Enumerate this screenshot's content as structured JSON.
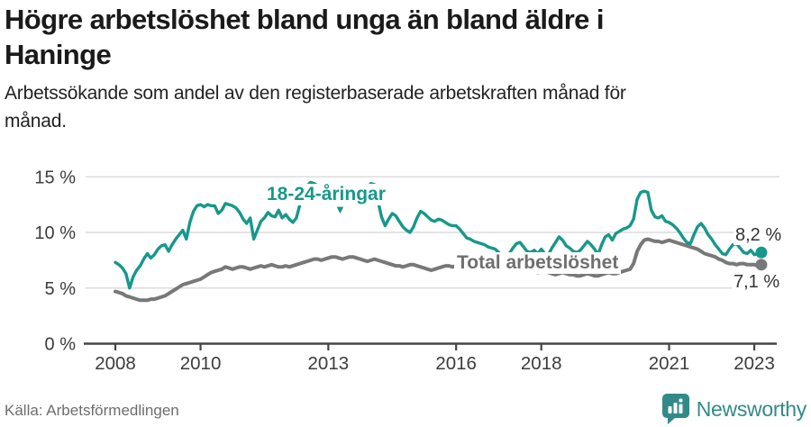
{
  "header": {
    "title_line1": "Högre arbetslöshet bland unga än bland äldre i",
    "title_line2": "Haninge",
    "subtitle_line1": "Arbetssökande som andel av den registerbaserade arbetskraften månad för",
    "subtitle_line2": "månad."
  },
  "colors": {
    "accent": "#17988b",
    "total_line": "#787878",
    "grid": "#dcdcdc",
    "axis": "#454545",
    "tick_text": "#3c3c3c",
    "muted_text": "#6d6d6d",
    "brand": "#328a88"
  },
  "chart_data": {
    "type": "line",
    "title": "Högre arbetslöshet bland unga än bland äldre i Haninge",
    "subtitle": "Arbetssökande som andel av den registerbaserade arbetskraften månad för månad.",
    "xlabel": "",
    "ylabel": "",
    "x_unit": "monthly",
    "x_start_year": 2008,
    "x_tick_years": [
      2008,
      2010,
      2013,
      2016,
      2018,
      2021,
      2023
    ],
    "y_ticks": [
      0,
      5,
      10,
      15
    ],
    "y_tick_suffix": " %",
    "ylim": [
      0,
      15
    ],
    "grid": true,
    "legend_position": "inline-annotations",
    "series": [
      {
        "name": "18-24-åringar",
        "color": "#17988b",
        "end_label": "8,2 %",
        "end_value": 8.2,
        "values": [
          7.3,
          7.1,
          6.8,
          6.3,
          5.0,
          6.0,
          6.6,
          7.0,
          7.6,
          8.1,
          7.7,
          8.0,
          8.5,
          8.8,
          8.9,
          8.3,
          8.9,
          9.4,
          9.8,
          10.2,
          9.4,
          10.9,
          11.9,
          12.4,
          12.5,
          12.3,
          12.5,
          12.4,
          12.4,
          11.7,
          12.0,
          12.6,
          12.5,
          12.4,
          12.2,
          11.8,
          11.2,
          10.8,
          11.3,
          9.4,
          10.2,
          11.0,
          11.3,
          11.8,
          11.5,
          11.4,
          12.0,
          11.3,
          11.6,
          11.2,
          10.9,
          11.3,
          12.5,
          13.6,
          14.2,
          14.5,
          14.4,
          14.2,
          13.9,
          14.0,
          14.2,
          14.0,
          13.8,
          13.6,
          13.5,
          13.4,
          13.3,
          13.4,
          13.5,
          13.6,
          13.8,
          14.0,
          14.4,
          14.3,
          12.8,
          11.4,
          10.6,
          11.2,
          11.7,
          11.5,
          11.0,
          10.5,
          10.2,
          10.0,
          10.5,
          11.3,
          11.9,
          11.7,
          11.4,
          11.1,
          11.0,
          11.2,
          11.1,
          10.9,
          10.7,
          10.6,
          10.6,
          10.3,
          9.9,
          9.5,
          9.4,
          9.2,
          9.1,
          9.0,
          8.9,
          8.7,
          8.6,
          8.5,
          8.2,
          7.9,
          7.7,
          8.1,
          8.6,
          9.0,
          9.1,
          8.7,
          8.3,
          8.2,
          8.4,
          8.1,
          8.5,
          8.1,
          8.0,
          8.6,
          9.1,
          9.6,
          9.3,
          8.8,
          8.6,
          8.3,
          8.2,
          8.4,
          8.8,
          9.2,
          8.9,
          8.5,
          8.0,
          8.9,
          9.6,
          9.8,
          9.3,
          9.9,
          10.1,
          10.3,
          10.4,
          10.6,
          11.2,
          13.0,
          13.6,
          13.7,
          13.6,
          12.0,
          11.4,
          11.3,
          11.5,
          11.0,
          10.9,
          10.7,
          10.4,
          10.0,
          9.5,
          9.1,
          9.0,
          9.8,
          10.5,
          10.8,
          10.4,
          9.8,
          9.4,
          8.9,
          8.5,
          8.1,
          8.0,
          8.5,
          8.9,
          9.0,
          8.6,
          8.2,
          8.1,
          8.4,
          8.0,
          8.1,
          8.2
        ]
      },
      {
        "name": "Total arbetslöshet",
        "color": "#787878",
        "end_label": "7,1 %",
        "end_value": 7.1,
        "values": [
          4.7,
          4.6,
          4.5,
          4.3,
          4.2,
          4.1,
          4.0,
          3.9,
          3.9,
          3.9,
          4.0,
          4.0,
          4.1,
          4.2,
          4.3,
          4.5,
          4.7,
          4.9,
          5.1,
          5.3,
          5.4,
          5.5,
          5.6,
          5.7,
          5.8,
          6.0,
          6.2,
          6.4,
          6.5,
          6.6,
          6.7,
          6.9,
          6.8,
          6.7,
          6.8,
          6.9,
          6.9,
          6.8,
          6.7,
          6.8,
          6.9,
          7.0,
          6.9,
          7.0,
          7.1,
          7.0,
          6.9,
          6.9,
          7.0,
          6.9,
          7.0,
          7.1,
          7.2,
          7.3,
          7.4,
          7.5,
          7.6,
          7.6,
          7.5,
          7.6,
          7.7,
          7.8,
          7.8,
          7.7,
          7.6,
          7.7,
          7.8,
          7.8,
          7.7,
          7.6,
          7.5,
          7.4,
          7.5,
          7.6,
          7.5,
          7.4,
          7.3,
          7.2,
          7.1,
          7.0,
          7.0,
          6.9,
          7.0,
          7.1,
          7.1,
          7.0,
          6.9,
          6.8,
          6.7,
          6.6,
          6.7,
          6.8,
          6.9,
          7.0,
          7.0,
          6.9,
          7.0,
          7.1,
          7.0,
          6.9,
          6.9,
          7.0,
          7.1,
          7.0,
          6.9,
          6.9,
          6.8,
          6.8,
          6.8,
          6.7,
          6.7,
          6.6,
          6.6,
          6.7,
          6.8,
          6.7,
          6.6,
          6.5,
          6.5,
          6.4,
          6.5,
          6.5,
          6.4,
          6.3,
          6.2,
          6.3,
          6.4,
          6.3,
          6.2,
          6.2,
          6.1,
          6.1,
          6.2,
          6.3,
          6.2,
          6.1,
          6.1,
          6.2,
          6.3,
          6.4,
          6.3,
          6.3,
          6.4,
          6.5,
          6.6,
          6.7,
          7.2,
          8.3,
          8.9,
          9.3,
          9.4,
          9.3,
          9.2,
          9.2,
          9.1,
          9.2,
          9.3,
          9.2,
          9.1,
          9.0,
          8.9,
          8.8,
          8.7,
          8.6,
          8.5,
          8.3,
          8.1,
          8.0,
          7.9,
          7.8,
          7.6,
          7.5,
          7.3,
          7.2,
          7.2,
          7.1,
          7.2,
          7.2,
          7.1,
          7.1,
          7.1,
          7.0,
          7.1
        ]
      }
    ]
  },
  "annotations": {
    "arrow_down": "▼"
  },
  "footer": {
    "source": "Källa: Arbetsförmedlingen",
    "brand_name": "Newsworthy"
  }
}
